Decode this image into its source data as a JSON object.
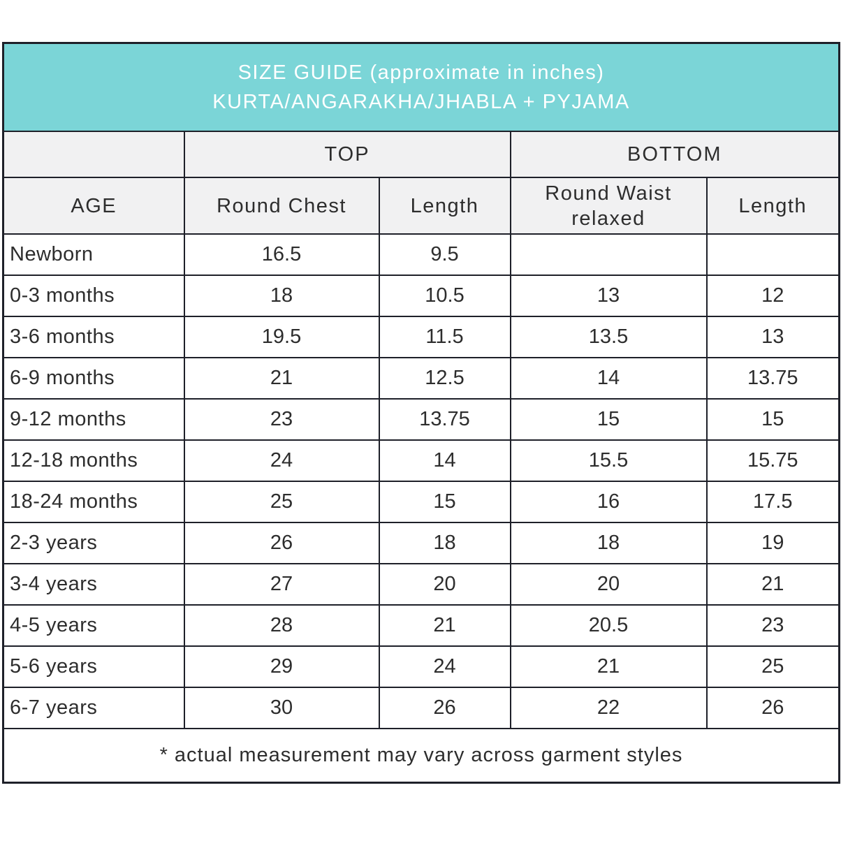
{
  "banner": {
    "title_line1": "SIZE GUIDE (approximate in inches)",
    "title_line2": "KURTA/ANGARAKHA/JHABLA + PYJAMA",
    "background_color": "#7bd5d7",
    "text_color": "#ffffff"
  },
  "table": {
    "group_headers": {
      "top": "TOP",
      "bottom": "BOTTOM"
    },
    "column_headers": {
      "age": "AGE",
      "round_chest": "Round Chest",
      "top_length": "Length",
      "round_waist": "Round Waist relaxed",
      "bottom_length": "Length"
    },
    "rows": [
      {
        "age": "Newborn",
        "round_chest": "16.5",
        "top_length": "9.5",
        "round_waist": "",
        "bottom_length": ""
      },
      {
        "age": "0-3 months",
        "round_chest": "18",
        "top_length": "10.5",
        "round_waist": "13",
        "bottom_length": "12"
      },
      {
        "age": "3-6 months",
        "round_chest": "19.5",
        "top_length": "11.5",
        "round_waist": "13.5",
        "bottom_length": "13"
      },
      {
        "age": "6-9 months",
        "round_chest": "21",
        "top_length": "12.5",
        "round_waist": "14",
        "bottom_length": "13.75"
      },
      {
        "age": "9-12 months",
        "round_chest": "23",
        "top_length": "13.75",
        "round_waist": "15",
        "bottom_length": "15"
      },
      {
        "age": "12-18 months",
        "round_chest": "24",
        "top_length": "14",
        "round_waist": "15.5",
        "bottom_length": "15.75"
      },
      {
        "age": "18-24 months",
        "round_chest": "25",
        "top_length": "15",
        "round_waist": "16",
        "bottom_length": "17.5"
      },
      {
        "age": "2-3 years",
        "round_chest": "26",
        "top_length": "18",
        "round_waist": "18",
        "bottom_length": "19"
      },
      {
        "age": "3-4 years",
        "round_chest": "27",
        "top_length": "20",
        "round_waist": "20",
        "bottom_length": "21"
      },
      {
        "age": "4-5 years",
        "round_chest": "28",
        "top_length": "21",
        "round_waist": "20.5",
        "bottom_length": "23"
      },
      {
        "age": "5-6 years",
        "round_chest": "29",
        "top_length": "24",
        "round_waist": "21",
        "bottom_length": "25"
      },
      {
        "age": "6-7 years",
        "round_chest": "30",
        "top_length": "26",
        "round_waist": "22",
        "bottom_length": "26"
      }
    ],
    "footnote": "* actual measurement may vary across garment styles"
  },
  "colors": {
    "accent_teal": "#7bd5d7",
    "header_row_background": "#f1f1f2",
    "border": "#1e2029",
    "text": "#2d2d2d"
  }
}
